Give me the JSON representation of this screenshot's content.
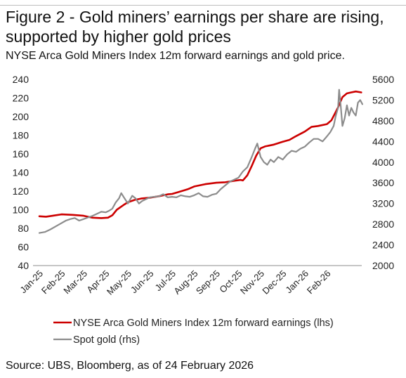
{
  "chart_data": {
    "type": "line",
    "title": "Figure 2 - Gold miners’ earnings per share are rising, supported by higher gold prices",
    "subtitle": "NYSE Arca Gold Miners Index 12m forward earnings and gold price.",
    "source": "Source: UBS, Bloomberg, as of 24 February 2026",
    "x_ticks": [
      "Jan-25",
      "Feb-25",
      "Mar-25",
      "Apr-25",
      "May-25",
      "Jun-25",
      "Jul-25",
      "Aug-25",
      "Sep-25",
      "Oct-25",
      "Nov-25",
      "Dec-25",
      "Jan-26",
      "Feb-26"
    ],
    "ylim_left": [
      40,
      240
    ],
    "yticks_left": [
      "40",
      "60",
      "80",
      "100",
      "120",
      "140",
      "160",
      "180",
      "200",
      "220",
      "240"
    ],
    "ylim_right": [
      2000,
      5600
    ],
    "yticks_right": [
      "2000",
      "2400",
      "2800",
      "3200",
      "3600",
      "4000",
      "4400",
      "4800",
      "5200",
      "5600"
    ],
    "grid": false,
    "legend_position": "bottom-left",
    "series": [
      {
        "name": "NYSE Arca Gold Miners Index 12m forward earnings (lhs)",
        "axis": "left",
        "color": "#cc0000",
        "points": [
          [
            0.0,
            93
          ],
          [
            0.3,
            92.5
          ],
          [
            0.6,
            93.5
          ],
          [
            1.0,
            95
          ],
          [
            1.5,
            94.5
          ],
          [
            2.0,
            93.5
          ],
          [
            2.4,
            91.5
          ],
          [
            2.8,
            91
          ],
          [
            3.1,
            91.5
          ],
          [
            3.3,
            94
          ],
          [
            3.5,
            100
          ],
          [
            3.8,
            105
          ],
          [
            4.0,
            108
          ],
          [
            4.3,
            110.5
          ],
          [
            4.6,
            112
          ],
          [
            5.0,
            113
          ],
          [
            5.4,
            114.5
          ],
          [
            5.8,
            116.5
          ],
          [
            6.0,
            117
          ],
          [
            6.3,
            119
          ],
          [
            6.7,
            122
          ],
          [
            7.0,
            125
          ],
          [
            7.5,
            127.5
          ],
          [
            8.0,
            129
          ],
          [
            8.4,
            129.5
          ],
          [
            8.8,
            131
          ],
          [
            9.1,
            132
          ],
          [
            9.2,
            131.5
          ],
          [
            9.4,
            137
          ],
          [
            9.6,
            147
          ],
          [
            9.8,
            158
          ],
          [
            10.0,
            166
          ],
          [
            10.2,
            168
          ],
          [
            10.6,
            170
          ],
          [
            11.0,
            173
          ],
          [
            11.3,
            175
          ],
          [
            11.6,
            179
          ],
          [
            12.0,
            184
          ],
          [
            12.3,
            189
          ],
          [
            12.6,
            190
          ],
          [
            13.0,
            192
          ],
          [
            13.2,
            196
          ],
          [
            13.5,
            210
          ],
          [
            13.7,
            221
          ],
          [
            13.9,
            225
          ],
          [
            14.1,
            226
          ],
          [
            14.3,
            227
          ],
          [
            14.55,
            226
          ]
        ]
      },
      {
        "name": "Spot gold (rhs)",
        "axis": "right",
        "color": "#8c8c8c",
        "points": [
          [
            0.0,
            2630
          ],
          [
            0.25,
            2650
          ],
          [
            0.5,
            2700
          ],
          [
            0.75,
            2760
          ],
          [
            1.0,
            2820
          ],
          [
            1.2,
            2870
          ],
          [
            1.4,
            2900
          ],
          [
            1.6,
            2920
          ],
          [
            1.8,
            2870
          ],
          [
            2.0,
            2900
          ],
          [
            2.2,
            2930
          ],
          [
            2.4,
            2960
          ],
          [
            2.6,
            3000
          ],
          [
            2.8,
            3040
          ],
          [
            3.0,
            3030
          ],
          [
            3.15,
            3060
          ],
          [
            3.3,
            3100
          ],
          [
            3.45,
            3220
          ],
          [
            3.6,
            3300
          ],
          [
            3.7,
            3400
          ],
          [
            3.85,
            3300
          ],
          [
            4.0,
            3200
          ],
          [
            4.2,
            3350
          ],
          [
            4.35,
            3300
          ],
          [
            4.5,
            3200
          ],
          [
            4.65,
            3250
          ],
          [
            4.8,
            3280
          ],
          [
            5.0,
            3320
          ],
          [
            5.2,
            3330
          ],
          [
            5.4,
            3340
          ],
          [
            5.6,
            3380
          ],
          [
            5.8,
            3320
          ],
          [
            6.0,
            3330
          ],
          [
            6.2,
            3320
          ],
          [
            6.4,
            3360
          ],
          [
            6.6,
            3340
          ],
          [
            6.8,
            3330
          ],
          [
            7.0,
            3360
          ],
          [
            7.2,
            3400
          ],
          [
            7.4,
            3340
          ],
          [
            7.6,
            3330
          ],
          [
            7.8,
            3370
          ],
          [
            8.0,
            3390
          ],
          [
            8.2,
            3480
          ],
          [
            8.4,
            3550
          ],
          [
            8.6,
            3620
          ],
          [
            8.8,
            3660
          ],
          [
            9.0,
            3700
          ],
          [
            9.2,
            3820
          ],
          [
            9.4,
            3900
          ],
          [
            9.6,
            4100
          ],
          [
            9.75,
            4260
          ],
          [
            9.85,
            4360
          ],
          [
            10.0,
            4100
          ],
          [
            10.15,
            4000
          ],
          [
            10.3,
            3950
          ],
          [
            10.45,
            4050
          ],
          [
            10.6,
            4000
          ],
          [
            10.8,
            4100
          ],
          [
            11.0,
            4050
          ],
          [
            11.2,
            4150
          ],
          [
            11.4,
            4220
          ],
          [
            11.6,
            4200
          ],
          [
            11.8,
            4260
          ],
          [
            12.0,
            4300
          ],
          [
            12.2,
            4380
          ],
          [
            12.4,
            4450
          ],
          [
            12.6,
            4450
          ],
          [
            12.8,
            4400
          ],
          [
            13.0,
            4500
          ],
          [
            13.15,
            4580
          ],
          [
            13.3,
            4700
          ],
          [
            13.4,
            4900
          ],
          [
            13.5,
            5050
          ],
          [
            13.55,
            5400
          ],
          [
            13.62,
            5100
          ],
          [
            13.7,
            4700
          ],
          [
            13.8,
            4850
          ],
          [
            13.9,
            5100
          ],
          [
            14.0,
            4900
          ],
          [
            14.1,
            5050
          ],
          [
            14.2,
            4960
          ],
          [
            14.3,
            4900
          ],
          [
            14.4,
            5150
          ],
          [
            14.5,
            5200
          ],
          [
            14.6,
            5120
          ]
        ]
      }
    ]
  }
}
